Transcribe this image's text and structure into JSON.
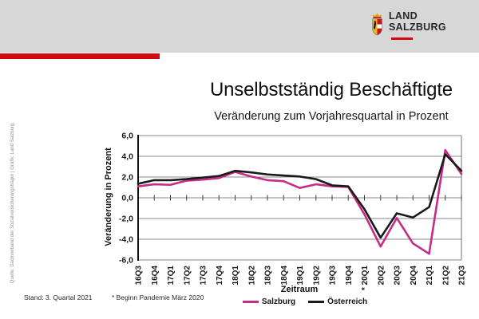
{
  "header": {
    "band_gray": "#d7d7d7",
    "accent_red": "#d20b10",
    "logo": {
      "line1": "LAND",
      "line2": "SALZBURG",
      "crest_icon": "salzburg-coat-of-arms"
    }
  },
  "title": "Unselbstständig Beschäftigte",
  "subtitle": "Veränderung zum Vorjahresquartal in Prozent",
  "source_note": "Quelle: Dachverband der Sozialversicherungsträger | Grafik: Land Salzburg",
  "footer": {
    "stand": "Stand: 3. Quartal 2021",
    "footnote": "* Beginn Pandemie März 2020"
  },
  "chart_data": {
    "type": "line",
    "title": "Unselbstständig Beschäftigte",
    "subtitle": "Veränderung zum Vorjahresquartal in Prozent",
    "xlabel": "Zeitraum",
    "ylabel": "Veränderung in Prozent",
    "ylim": [
      -6,
      6
    ],
    "ytick_step": 2,
    "ytick_labels": [
      "6,0",
      "4,0",
      "2,0",
      "0,0",
      "-2,0",
      "-4,0",
      "-6,0"
    ],
    "grid": true,
    "legend_position": "bottom",
    "categories": [
      "16Q3",
      "16Q4",
      "17Q1",
      "17Q2",
      "17Q3",
      "17Q4",
      "18Q1",
      "18Q2",
      "18Q3",
      "18Q4",
      "19Q1",
      "19Q2",
      "19Q3",
      "19Q4",
      "* 20Q1",
      "20Q2",
      "20Q3",
      "20Q4",
      "21Q1",
      "21Q2",
      "21Q3"
    ],
    "series": [
      {
        "name": "Salzburg",
        "slug": "salzburg-line",
        "color": "#c62c85",
        "values": [
          1.1,
          1.3,
          1.25,
          1.65,
          1.75,
          1.9,
          2.5,
          2.05,
          1.7,
          1.6,
          0.95,
          1.3,
          1.1,
          1.05,
          -1.6,
          -4.7,
          -1.95,
          -4.4,
          -5.4,
          4.6,
          2.3
        ]
      },
      {
        "name": "Österreich",
        "slug": "oesterreich-line",
        "color": "#1a1a1a",
        "values": [
          1.35,
          1.7,
          1.7,
          1.8,
          1.95,
          2.1,
          2.6,
          2.45,
          2.25,
          2.15,
          2.05,
          1.8,
          1.2,
          1.1,
          -1.1,
          -3.85,
          -1.5,
          -1.9,
          -0.9,
          4.2,
          2.6
        ]
      }
    ]
  }
}
